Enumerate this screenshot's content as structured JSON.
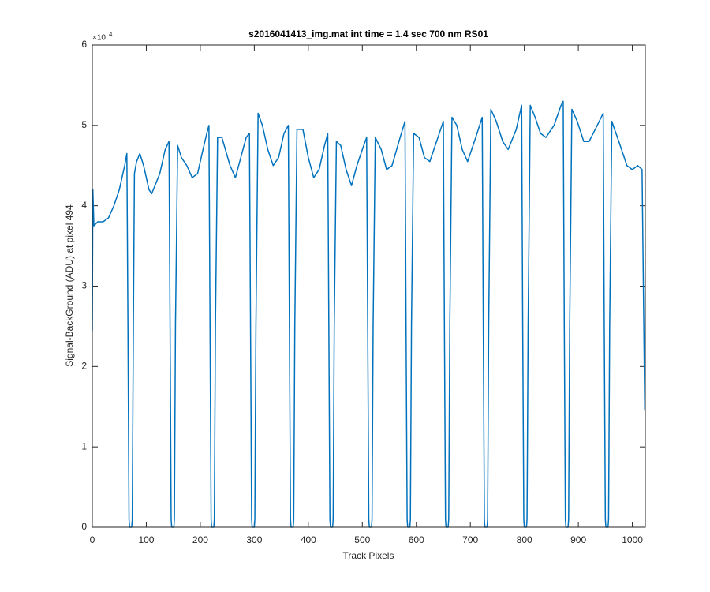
{
  "chart_data": {
    "type": "line",
    "title": "s2016041413_img.mat int time = 1.4 sec  700 nm RS01",
    "x_label": "Track Pixels",
    "y_label": "Signal-BackGround (ADU) at pixel 494",
    "y_exponent": {
      "base": "×10",
      "power": "4"
    },
    "xlim": [
      0,
      1024
    ],
    "ylim": [
      0,
      60000
    ],
    "xticks": [
      0,
      100,
      200,
      300,
      400,
      500,
      600,
      700,
      800,
      900,
      1000
    ],
    "yticks": [
      0,
      {
        "value": 10000,
        "label": "1"
      },
      {
        "value": 20000,
        "label": "2"
      },
      {
        "value": 30000,
        "label": "3"
      },
      {
        "value": 40000,
        "label": "4"
      },
      {
        "value": 50000,
        "label": "5"
      },
      {
        "value": 60000,
        "label": "6"
      }
    ],
    "series": [
      {
        "color": "#0072bd",
        "x": [
          0,
          1,
          3,
          10,
          20,
          30,
          40,
          50,
          60,
          64,
          66,
          68,
          69,
          73,
          74,
          76,
          78,
          82,
          88,
          95,
          105,
          110,
          125,
          135,
          142,
          144,
          146,
          147,
          151,
          152,
          154,
          158,
          165,
          175,
          185,
          195,
          205,
          212,
          216,
          218,
          220,
          221,
          225,
          226,
          228,
          232,
          240,
          255,
          265,
          275,
          285,
          291,
          293,
          295,
          296,
          300,
          301,
          303,
          307,
          315,
          325,
          335,
          345,
          355,
          363,
          365,
          367,
          368,
          372,
          373,
          375,
          379,
          390,
          400,
          410,
          420,
          430,
          436,
          438,
          440,
          441,
          445,
          446,
          448,
          452,
          460,
          470,
          480,
          490,
          500,
          508,
          510,
          512,
          513,
          517,
          518,
          520,
          524,
          535,
          545,
          555,
          570,
          579,
          581,
          583,
          584,
          588,
          589,
          591,
          595,
          605,
          615,
          625,
          640,
          650,
          652,
          654,
          655,
          659,
          660,
          662,
          666,
          675,
          685,
          695,
          710,
          722,
          724,
          726,
          727,
          731,
          732,
          734,
          738,
          748,
          760,
          770,
          785,
          795,
          797,
          799,
          800,
          804,
          805,
          807,
          811,
          820,
          830,
          840,
          855,
          868,
          872,
          874,
          876,
          877,
          881,
          882,
          884,
          888,
          898,
          910,
          920,
          935,
          946,
          948,
          950,
          951,
          955,
          956,
          958,
          962,
          975,
          990,
          1000,
          1010,
          1018,
          1023
        ],
        "values": [
          24500,
          42000,
          37500,
          38000,
          38000,
          38500,
          40000,
          42000,
          45000,
          46500,
          25000,
          1000,
          0,
          0,
          1000,
          25000,
          44000,
          45500,
          46500,
          45000,
          42000,
          41500,
          44000,
          47000,
          48000,
          25000,
          1000,
          0,
          0,
          1000,
          25000,
          47500,
          46000,
          45000,
          43500,
          44000,
          47000,
          49000,
          50000,
          25000,
          1000,
          0,
          0,
          1000,
          25000,
          48500,
          48500,
          45000,
          43500,
          46000,
          48500,
          49000,
          25000,
          1000,
          0,
          0,
          1000,
          25000,
          51500,
          50000,
          47000,
          45000,
          46000,
          49000,
          50000,
          25000,
          1000,
          0,
          0,
          1000,
          25000,
          49500,
          49500,
          46000,
          43500,
          44500,
          47500,
          49000,
          25000,
          1000,
          0,
          0,
          1000,
          25000,
          48000,
          47500,
          44500,
          42500,
          45000,
          47000,
          48500,
          25000,
          1000,
          0,
          0,
          1000,
          25000,
          48500,
          47000,
          44500,
          45000,
          48500,
          50500,
          25000,
          1000,
          0,
          0,
          1000,
          25000,
          49000,
          48500,
          46000,
          45500,
          48500,
          50500,
          25000,
          1000,
          0,
          0,
          1000,
          25000,
          51000,
          50000,
          47000,
          45500,
          48500,
          51000,
          25000,
          1000,
          0,
          0,
          1000,
          25000,
          52000,
          50500,
          48000,
          47000,
          49500,
          52500,
          25000,
          1000,
          0,
          0,
          1000,
          25000,
          52500,
          51000,
          49000,
          48500,
          50000,
          52500,
          53000,
          25000,
          1000,
          0,
          0,
          1000,
          25000,
          52000,
          50500,
          48000,
          48000,
          50000,
          51500,
          25000,
          1000,
          0,
          0,
          1000,
          25000,
          50500,
          48000,
          45000,
          44500,
          45000,
          44500,
          14500
        ]
      }
    ]
  }
}
